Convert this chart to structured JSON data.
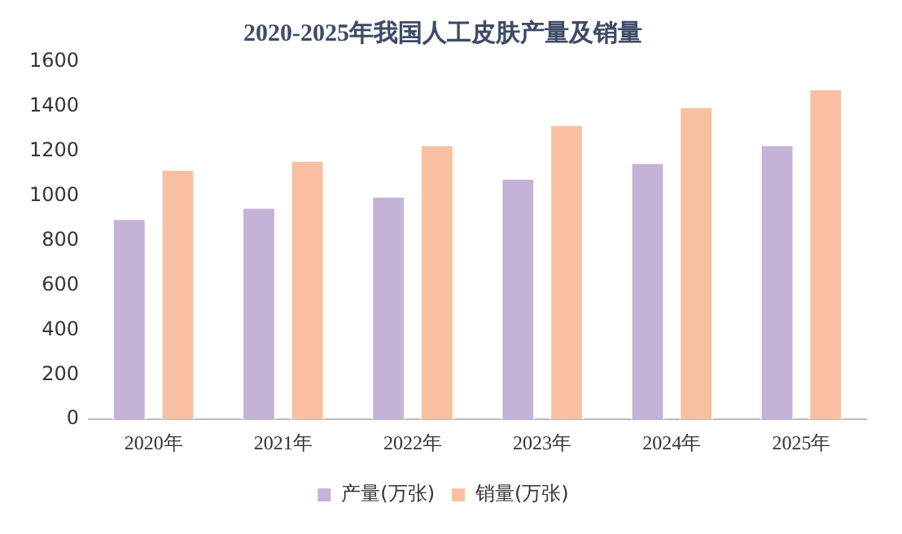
{
  "chart_data": {
    "type": "bar",
    "title": "2020-2025年我国人工皮肤产量及销量",
    "categories": [
      "2020年",
      "2021年",
      "2022年",
      "2023年",
      "2024年",
      "2025年"
    ],
    "series": [
      {
        "name": "产量(万张)",
        "color": "#c4b3d6",
        "values": [
          900,
          950,
          1000,
          1080,
          1150,
          1230
        ]
      },
      {
        "name": "销量(万张)",
        "color": "#f8c0a0",
        "values": [
          1120,
          1160,
          1230,
          1320,
          1400,
          1480
        ]
      }
    ],
    "ylim": [
      0,
      1600
    ],
    "yticks": [
      0,
      200,
      400,
      600,
      800,
      1000,
      1200,
      1400,
      1600
    ],
    "grid": false,
    "legend": "bottom"
  }
}
